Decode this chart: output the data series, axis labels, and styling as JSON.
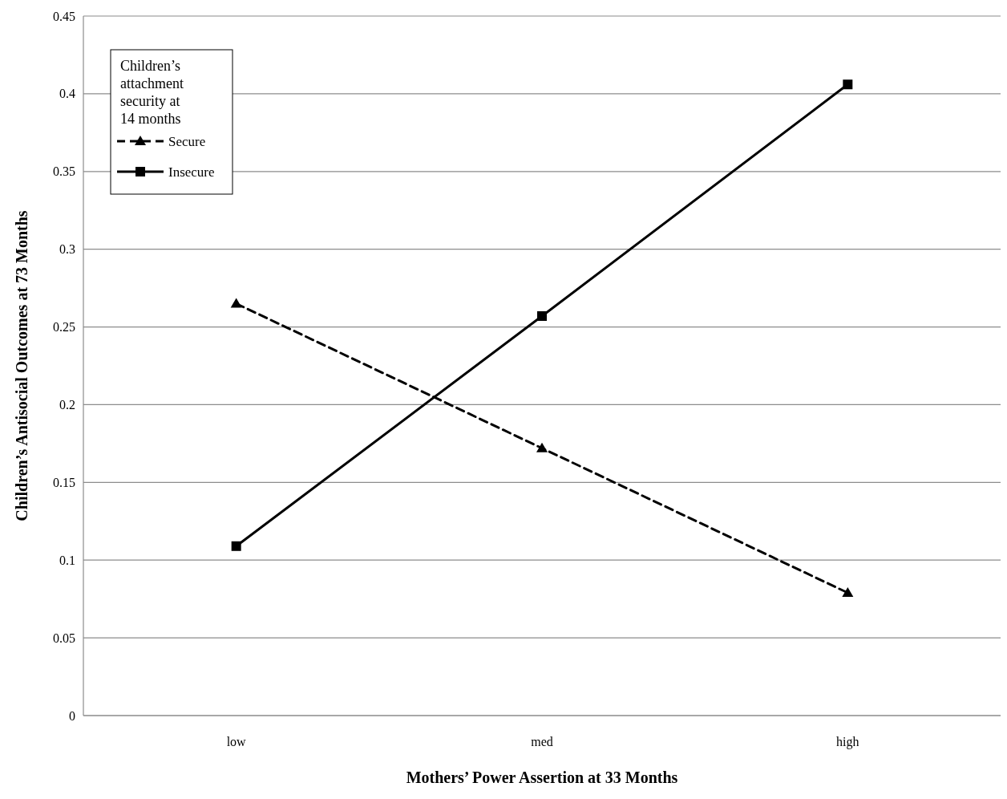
{
  "chart_data": {
    "type": "line",
    "xlabel": "Mothers’ Power Assertion at 33 Months",
    "ylabel": "Children’s Antisocial Outcomes at 73 Months",
    "legend_title": "Children’s attachment security at 14 months",
    "categories": [
      "low",
      "med",
      "high"
    ],
    "ylim": [
      0,
      0.45
    ],
    "yticks": [
      0,
      0.05,
      0.1,
      0.15,
      0.2,
      0.25,
      0.3,
      0.35,
      0.4,
      0.45
    ],
    "grid": "y",
    "legend": "top left",
    "series": [
      {
        "name": "Secure",
        "color": "#000000",
        "marker": "triangle",
        "line_style": "dashed",
        "values": [
          0.265,
          0.172,
          0.079
        ]
      },
      {
        "name": "Insecure",
        "color": "#000000",
        "marker": "square",
        "line_style": "solid",
        "values": [
          0.109,
          0.257,
          0.406
        ]
      }
    ]
  }
}
